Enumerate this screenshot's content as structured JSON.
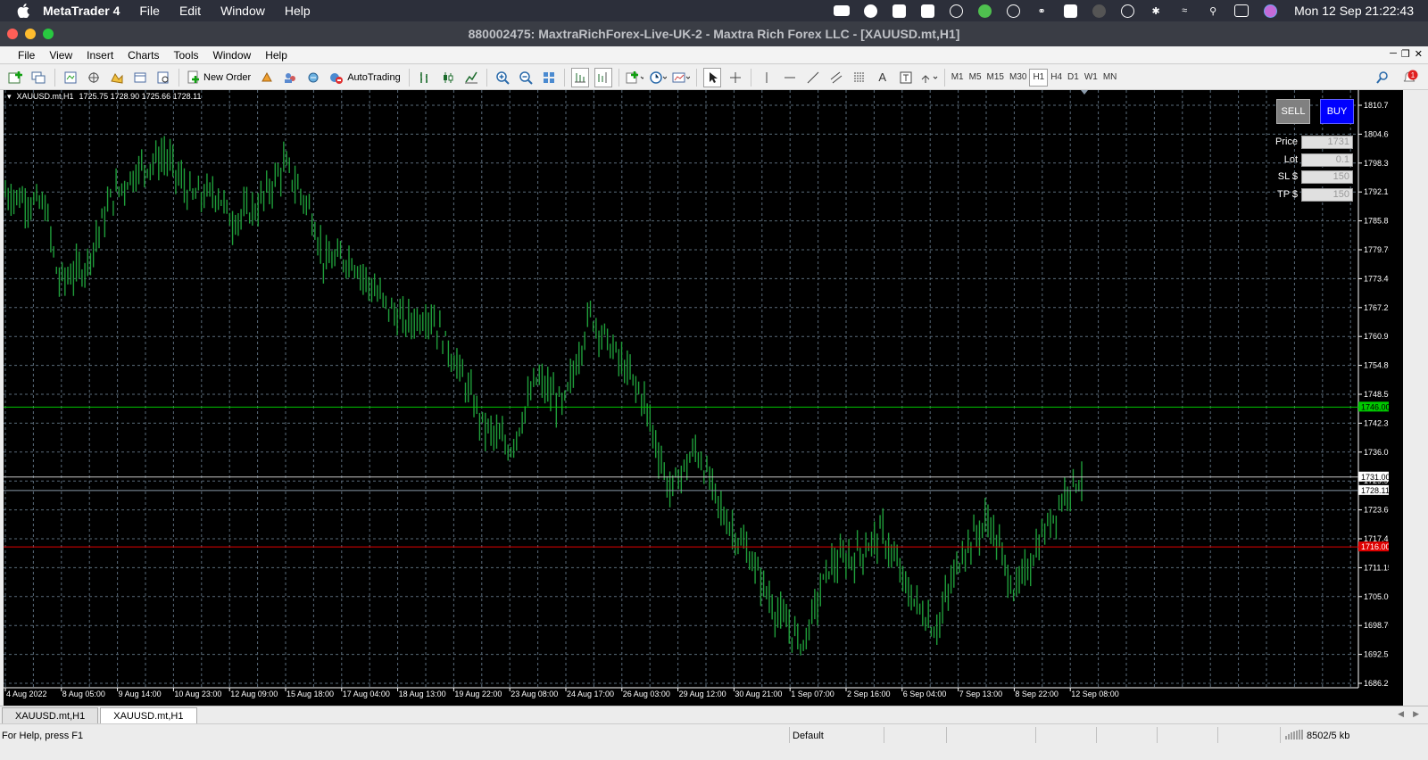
{
  "mac_menubar": {
    "app_name": "MetaTrader 4",
    "menus": [
      "File",
      "Edit",
      "Window",
      "Help"
    ],
    "datetime": "Mon 12 Sep  21:22:43"
  },
  "window": {
    "title": "880002475: MaxtraRichForex-Live-UK-2 - Maxtra Rich Forex LLC - [XAUUSD.mt,H1]"
  },
  "app_menu": {
    "items": [
      "File",
      "View",
      "Insert",
      "Charts",
      "Tools",
      "Window",
      "Help"
    ]
  },
  "toolbar": {
    "new_order_label": "New Order",
    "autotrading_label": "AutoTrading",
    "timeframes": [
      "M1",
      "M5",
      "M15",
      "M30",
      "H1",
      "H4",
      "D1",
      "W1",
      "MN"
    ],
    "active_timeframe": "H1",
    "notification_count": "1"
  },
  "chart": {
    "header": {
      "symbol": "XAUUSD.mt,H1",
      "ohlc": "1725.75 1728.90 1725.66 1728.11"
    },
    "price_ticks": [
      "1810.75",
      "1804.60",
      "1798.30",
      "1792.15",
      "1785.85",
      "1779.70",
      "1773.40",
      "1767.25",
      "1760.95",
      "1754.80",
      "1748.50",
      "1742.35",
      "1736.05",
      "1729.90",
      "1723.60",
      "1717.45",
      "1711.15",
      "1705.00",
      "1698.70",
      "1692.55",
      "1686.25"
    ],
    "time_ticks": [
      "4 Aug 2022",
      "8 Aug 05:00",
      "9 Aug 14:00",
      "10 Aug 23:00",
      "12 Aug 09:00",
      "15 Aug 18:00",
      "17 Aug 04:00",
      "18 Aug 13:00",
      "19 Aug 22:00",
      "23 Aug 08:00",
      "24 Aug 17:00",
      "26 Aug 03:00",
      "29 Aug 12:00",
      "30 Aug 21:00",
      "1 Sep 07:00",
      "2 Sep 16:00",
      "6 Sep 04:00",
      "7 Sep 13:00",
      "8 Sep 22:00",
      "12 Sep 08:00"
    ],
    "line_markers": {
      "take_profit": "1746.00",
      "entry": "1731.00",
      "bid": "1728.11",
      "stop_loss": "1716.00"
    },
    "colors": {
      "candle": "#1f9e3a",
      "grid": "#5a6b7a",
      "take_profit": "#00c800",
      "stop_loss": "#e00000",
      "buy_button": "#0000ff",
      "sell_button": "#808080"
    }
  },
  "trade_panel": {
    "sell_label": "SELL",
    "buy_label": "BUY",
    "fields": [
      {
        "label": "Price",
        "value": "1731"
      },
      {
        "label": "Lot",
        "value": "0.1"
      },
      {
        "label": "SL $",
        "value": "150"
      },
      {
        "label": "TP $",
        "value": "150"
      }
    ]
  },
  "tabs": [
    "XAUUSD.mt,H1",
    "XAUUSD.mt,H1"
  ],
  "active_tab": 1,
  "statusbar": {
    "help": "For Help, press F1",
    "profile": "Default",
    "traffic": "8502/5 kb"
  }
}
